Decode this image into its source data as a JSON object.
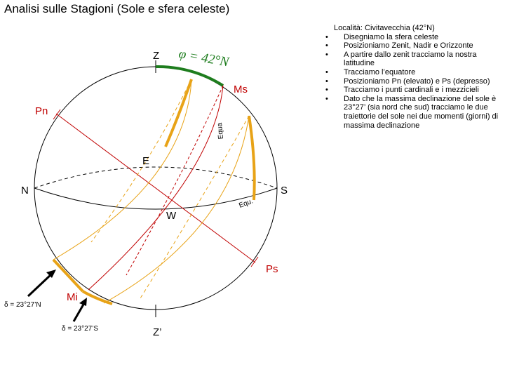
{
  "title": "Analisi sulle Stagioni (Sole e sfera celeste)",
  "notes": {
    "location": "Località: Civitavecchia (42°N)",
    "items": [
      "Disegniamo la sfera celeste",
      "Posizioniamo Zenit, Nadir e Orizzonte",
      "A partire dallo zenit tracciamo la nostra latitudine",
      "Tracciamo l’equatore",
      "Posizioniamo Pn (elevato) e Ps (depresso)",
      "Tracciamo i punti cardinali e i mezzicieli",
      "Dato che la massima declinazione del sole è 23°27’ (sia nord che sud) tracciamo le due traiettorie del sole nei due momenti (giorni) di massima declinazione"
    ]
  },
  "labels": {
    "zenith": "Z",
    "nadir": "Z’",
    "north": "N",
    "south": "S",
    "east": "E",
    "west": "W",
    "pole_north": "Pn",
    "pole_south": "Ps",
    "meridian_upper": "Ms",
    "meridian_lower": "Mi",
    "latitude": "φ = 42°N",
    "equator_tag_upper": "Equa",
    "equator_tag_lower": "Equ.",
    "decl_north": "δ = 23°27’N",
    "decl_south": "δ = 23°27’S"
  },
  "colors": {
    "sphere": "#000000",
    "horizon": "#000000",
    "equator": "#c00000",
    "sun_path": "#e8a317",
    "latitude_arc": "#1e7d1e",
    "axis": "#c00000"
  }
}
